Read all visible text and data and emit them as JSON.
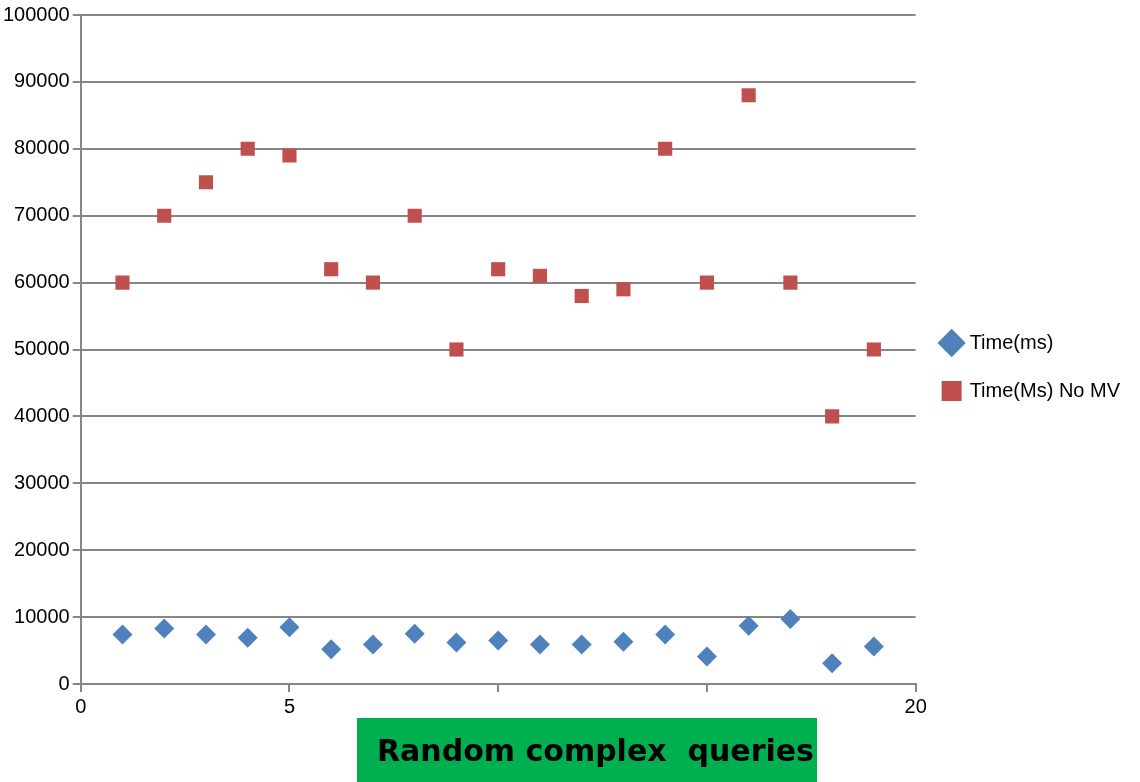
{
  "chart_data": {
    "type": "scatter",
    "xlabel": "Random complex  queries",
    "x": [
      1,
      2,
      3,
      4,
      5,
      6,
      7,
      8,
      9,
      10,
      11,
      12,
      13,
      14,
      15,
      16,
      17,
      18,
      19
    ],
    "series": [
      {
        "name": "Time(ms)",
        "color": "#4f81bd",
        "marker": "diamond",
        "values": [
          7400,
          8300,
          7400,
          6900,
          8500,
          5200,
          5900,
          7500,
          6200,
          6500,
          5900,
          5900,
          6300,
          7400,
          4100,
          8700,
          9700,
          3100,
          5600
        ]
      },
      {
        "name": "Time(Ms) No MV",
        "color": "#c0504d",
        "marker": "square",
        "values": [
          60000,
          70000,
          75000,
          80000,
          79000,
          62000,
          60000,
          70000,
          50000,
          62000,
          61000,
          58000,
          59000,
          80000,
          60000,
          88000,
          60000,
          40000,
          50000
        ]
      }
    ],
    "xlim": [
      0,
      20
    ],
    "xticks": [
      0,
      5,
      {
        "value": 10,
        "label": null
      },
      {
        "value": 15,
        "label": null
      },
      20
    ],
    "ylim": [
      0,
      100000
    ],
    "yticks": [
      0,
      10000,
      20000,
      30000,
      40000,
      50000,
      60000,
      70000,
      80000,
      90000,
      100000
    ],
    "grid": "y",
    "legend": "right"
  }
}
